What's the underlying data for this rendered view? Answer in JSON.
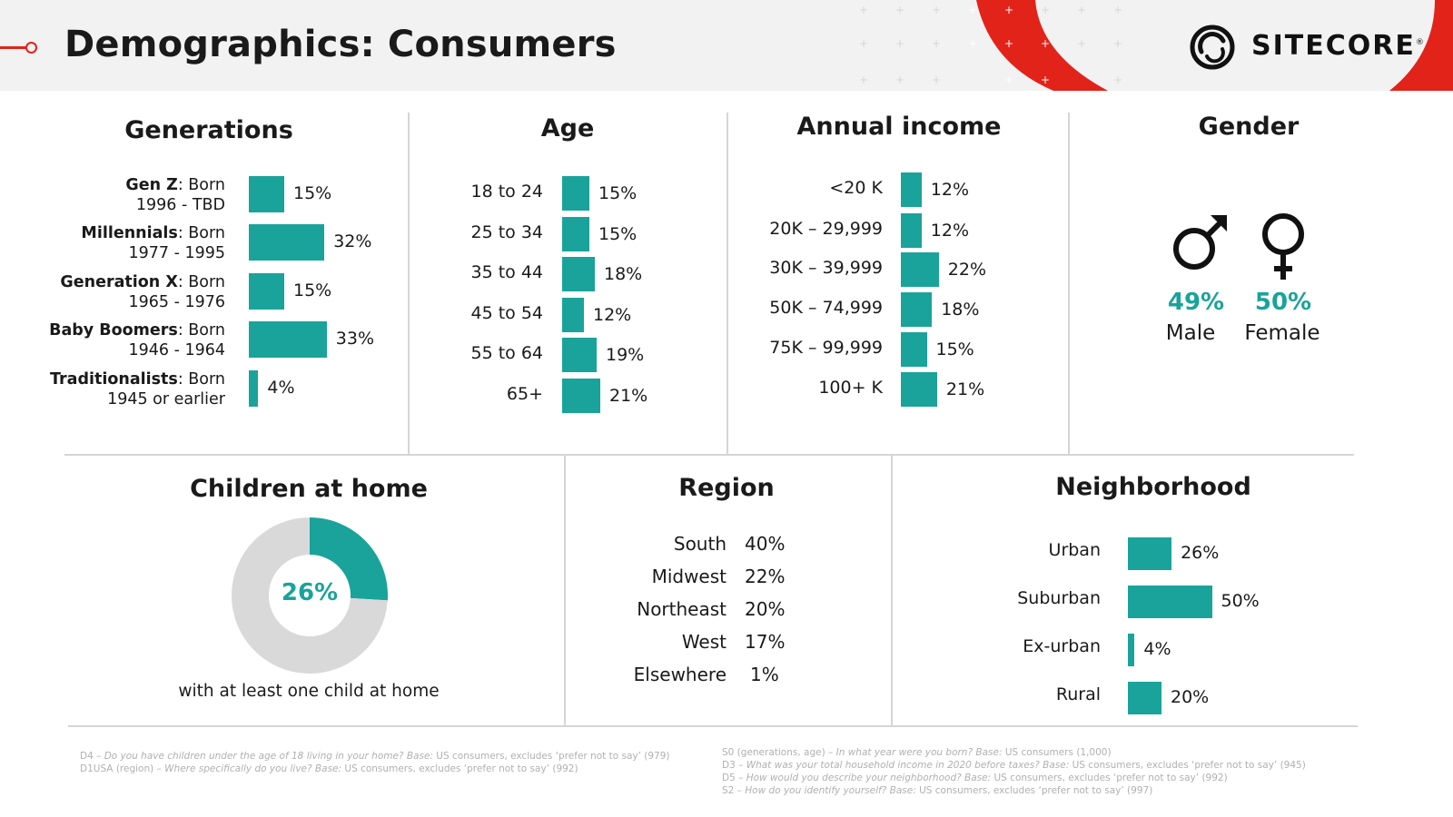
{
  "header": {
    "title": "Demographics: Consumers",
    "logo_text": "SITECORE",
    "registered_mark": "®"
  },
  "colors": {
    "accent": "#e2231a",
    "bar": "#1aa39a",
    "donut_rest": "#d9d9d9"
  },
  "generations": {
    "title": "Generations",
    "chart_data": {
      "type": "bar",
      "categories": [
        "Gen Z",
        "Millennials",
        "Generation X",
        "Baby Boomers",
        "Traditionalists"
      ],
      "sublabels": [
        "1996 - TBD",
        "1977 - 1995",
        "1965 - 1976",
        "1946 - 1964",
        "1945 or earlier"
      ],
      "born_word": ": Born",
      "values": [
        15,
        32,
        15,
        33,
        4
      ],
      "value_labels": [
        "15%",
        "32%",
        "15%",
        "33%",
        "4%"
      ]
    }
  },
  "age": {
    "title": "Age",
    "chart_data": {
      "type": "bar",
      "categories": [
        "18 to 24",
        "25 to 34",
        "35 to 44",
        "45 to 54",
        "55 to 64",
        "65+"
      ],
      "values": [
        15,
        15,
        18,
        12,
        19,
        21
      ],
      "value_labels": [
        "15%",
        "15%",
        "18%",
        "12%",
        "19%",
        "21%"
      ]
    }
  },
  "income": {
    "title": "Annual income",
    "chart_data": {
      "type": "bar",
      "categories": [
        "<20 K",
        "20K – 29,999",
        "30K – 39,999",
        "50K – 74,999",
        "75K – 99,999",
        "100+ K"
      ],
      "values": [
        12,
        12,
        22,
        18,
        15,
        21
      ],
      "value_labels": [
        "12%",
        "12%",
        "22%",
        "18%",
        "15%",
        "21%"
      ]
    }
  },
  "gender": {
    "title": "Gender",
    "male": {
      "pct": "49%",
      "label": "Male",
      "icon": "male-symbol-icon"
    },
    "female": {
      "pct": "50%",
      "label": "Female",
      "icon": "female-symbol-icon"
    }
  },
  "children": {
    "title": "Children at home",
    "chart_data": {
      "type": "pie",
      "values": [
        26,
        74
      ],
      "center_label": "26%"
    },
    "caption": "with at least one child at home"
  },
  "region": {
    "title": "Region",
    "chart_data": {
      "type": "table",
      "categories": [
        "South",
        "Midwest",
        "Northeast",
        "West",
        "Elsewhere"
      ],
      "values": [
        40,
        22,
        20,
        17,
        1
      ],
      "value_labels": [
        "40%",
        "22%",
        "20%",
        "17%",
        "1%"
      ]
    }
  },
  "neighborhood": {
    "title": "Neighborhood",
    "chart_data": {
      "type": "bar",
      "categories": [
        "Urban",
        "Suburban",
        "Ex-urban",
        "Rural"
      ],
      "values": [
        26,
        50,
        4,
        20
      ],
      "value_labels": [
        "26%",
        "50%",
        "4%",
        "20%"
      ]
    }
  },
  "footnotes": {
    "left": [
      {
        "code": "D4 – ",
        "question": "Do you have children under the age of 18 living in your home?",
        "base": " Base:",
        "rest": " US consumers, excludes ‘prefer not to say’ (979)"
      },
      {
        "code": "D1USA (region) – ",
        "question": "Where specifically do you live?",
        "base": " Base:",
        "rest": " US consumers, excludes ‘prefer not to say’ (992)"
      }
    ],
    "right": [
      {
        "code": "S0 (generations, age) – ",
        "question": "In what year were you born?",
        "base": " Base:",
        "rest": " US consumers (1,000)"
      },
      {
        "code": "D3 – ",
        "question": "What was your total household income in 2020 before taxes?",
        "base": " Base:",
        "rest": " US consumers, excludes ‘prefer not to say’ (945)"
      },
      {
        "code": "D5 – ",
        "question": "How would you describe your neighborhood?",
        "base": " Base:",
        "rest": " US consumers, excludes ‘prefer not to say’ (992)"
      },
      {
        "code": "S2 – ",
        "question": "How do you identify yourself?",
        "base": " Base:",
        "rest": " US consumers, excludes ‘prefer not to say’ (997)"
      }
    ]
  }
}
